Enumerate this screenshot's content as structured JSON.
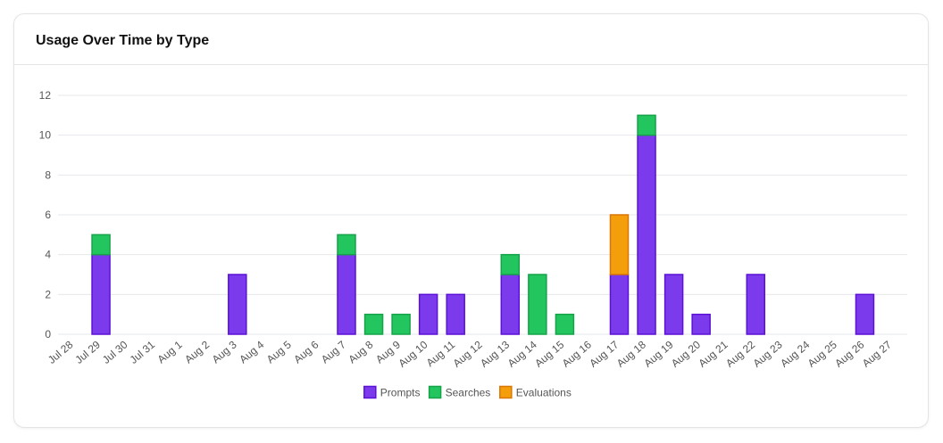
{
  "card": {
    "title": "Usage Over Time by Type"
  },
  "chart_data": {
    "type": "bar",
    "stacked": true,
    "title": "Usage Over Time by Type",
    "categories": [
      "Jul 28",
      "Jul 29",
      "Jul 30",
      "Jul 31",
      "Aug 1",
      "Aug 2",
      "Aug 3",
      "Aug 4",
      "Aug 5",
      "Aug 6",
      "Aug 7",
      "Aug 8",
      "Aug 9",
      "Aug 10",
      "Aug 11",
      "Aug 12",
      "Aug 13",
      "Aug 14",
      "Aug 15",
      "Aug 16",
      "Aug 17",
      "Aug 18",
      "Aug 19",
      "Aug 20",
      "Aug 21",
      "Aug 22",
      "Aug 23",
      "Aug 24",
      "Aug 25",
      "Aug 26",
      "Aug 27"
    ],
    "series": [
      {
        "name": "Prompts",
        "color": "#7c3aed",
        "border": "#5b12d6",
        "values": [
          0,
          4,
          0,
          0,
          0,
          0,
          3,
          0,
          0,
          0,
          4,
          0,
          0,
          2,
          2,
          0,
          3,
          0,
          0,
          0,
          3,
          10,
          3,
          1,
          0,
          3,
          0,
          0,
          0,
          2,
          0
        ]
      },
      {
        "name": "Searches",
        "color": "#22c55e",
        "border": "#16a34a",
        "values": [
          0,
          1,
          0,
          0,
          0,
          0,
          0,
          0,
          0,
          0,
          1,
          1,
          1,
          0,
          0,
          0,
          1,
          3,
          1,
          0,
          0,
          1,
          0,
          0,
          0,
          0,
          0,
          0,
          0,
          0,
          0
        ]
      },
      {
        "name": "Evaluations",
        "color": "#f59e0b",
        "border": "#d97706",
        "values": [
          0,
          0,
          0,
          0,
          0,
          0,
          0,
          0,
          0,
          0,
          0,
          0,
          0,
          0,
          0,
          0,
          0,
          0,
          0,
          0,
          3,
          0,
          0,
          0,
          0,
          0,
          0,
          0,
          0,
          0,
          0
        ]
      }
    ],
    "y_ticks": [
      0,
      2,
      4,
      6,
      8,
      10,
      12
    ],
    "ylim": [
      0,
      12
    ],
    "grid": true,
    "legend": "bottom-center"
  }
}
